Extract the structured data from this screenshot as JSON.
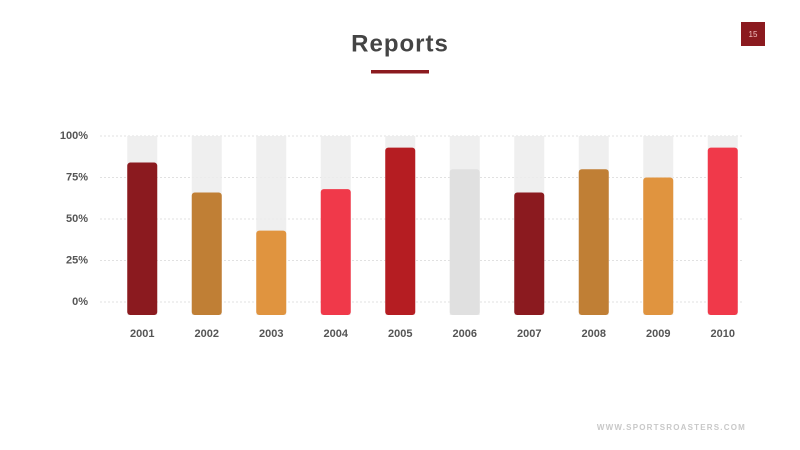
{
  "chart_data": {
    "type": "bar",
    "title": "Reports",
    "categories": [
      "2001",
      "2002",
      "2003",
      "2004",
      "2005",
      "2006",
      "2007",
      "2008",
      "2009",
      "2010"
    ],
    "values": [
      84,
      66,
      43,
      68,
      93,
      80,
      66,
      80,
      75,
      93
    ],
    "colors": [
      "#8b1a1f",
      "#c07f35",
      "#e0943f",
      "#f0394a",
      "#b51d22",
      "#e0e0e0",
      "#8b1a1f",
      "#c07f35",
      "#e0943f",
      "#f0394a"
    ],
    "ylim": [
      0,
      100
    ],
    "yticks": [
      {
        "value": 0,
        "label": "0%"
      },
      {
        "value": 25,
        "label": "25%"
      },
      {
        "value": 50,
        "label": "50%"
      },
      {
        "value": 75,
        "label": "75%"
      },
      {
        "value": 100,
        "label": "100%"
      }
    ],
    "grid": true
  },
  "page_number": "15",
  "footer": "WWW.SPORTSROASTERS.COM"
}
